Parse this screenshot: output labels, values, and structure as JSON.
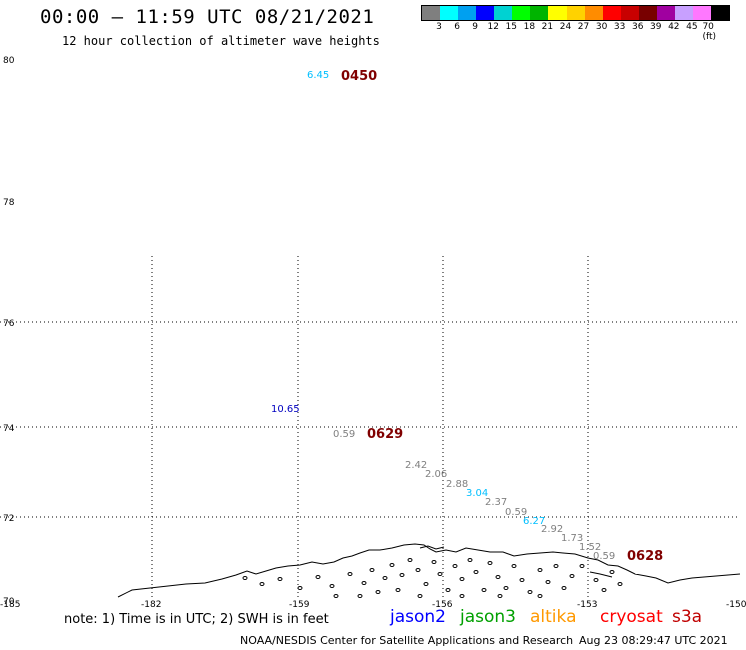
{
  "header": {
    "title": "00:00 – 11:59 UTC 08/21/2021",
    "subtitle": "12 hour collection of altimeter wave heights"
  },
  "scale": {
    "colors": [
      "#7f7f7f",
      "#00ffff",
      "#00a0f0",
      "#0000ff",
      "#00d2d2",
      "#00ff00",
      "#00b400",
      "#ffff00",
      "#ffd200",
      "#ff8c00",
      "#ff0000",
      "#c80000",
      "#780000",
      "#a000a0",
      "#c8a0ff",
      "#ff78ff",
      "#000000"
    ],
    "labels": [
      "3",
      "6",
      "9",
      "12",
      "15",
      "18",
      "21",
      "24",
      "27",
      "30",
      "33",
      "36",
      "39",
      "42",
      "45",
      "70 (ft)"
    ]
  },
  "axes": {
    "lat_labels": [
      "80",
      "78",
      "76",
      "74",
      "72",
      "70"
    ],
    "lon_labels": [
      "-185",
      "-182",
      "-159",
      "-156",
      "-153",
      "-150"
    ]
  },
  "passes": [
    {
      "time": "0450",
      "values": [
        {
          "v": "6.45",
          "color": "#00bfff"
        }
      ]
    },
    {
      "time": "0629",
      "values": [
        {
          "v": "10.65",
          "color": "#0000c0"
        },
        {
          "v": "0.59",
          "color": "#808080"
        },
        {
          "v": "2.42",
          "color": "#808080"
        },
        {
          "v": "2.06",
          "color": "#808080"
        },
        {
          "v": "2.88",
          "color": "#808080"
        },
        {
          "v": "3.04",
          "color": "#00bfff"
        },
        {
          "v": "2.37",
          "color": "#808080"
        },
        {
          "v": "0.59",
          "color": "#808080"
        },
        {
          "v": "6.27",
          "color": "#00bfff"
        },
        {
          "v": "2.92",
          "color": "#808080"
        },
        {
          "v": "1.73",
          "color": "#808080"
        },
        {
          "v": "1.52",
          "color": "#808080"
        },
        {
          "v": "0.59",
          "color": "#808080"
        }
      ]
    },
    {
      "time": "0628",
      "values": []
    }
  ],
  "footer": {
    "note": "note: 1) Time is in UTC; 2) SWH is in feet",
    "satellites": [
      {
        "name": "jason2",
        "color": "#0000ff"
      },
      {
        "name": "jason3",
        "color": "#00a000"
      },
      {
        "name": "altika",
        "color": "#ff9900"
      },
      {
        "name": "cryosat",
        "color": "#ff0000"
      },
      {
        "name": "s3a",
        "color": "#c00000"
      }
    ],
    "credit": "NOAA/NESDIS Center for Satellite Applications and Research",
    "timestamp": "Aug 23 08:29:47 UTC 2021"
  }
}
